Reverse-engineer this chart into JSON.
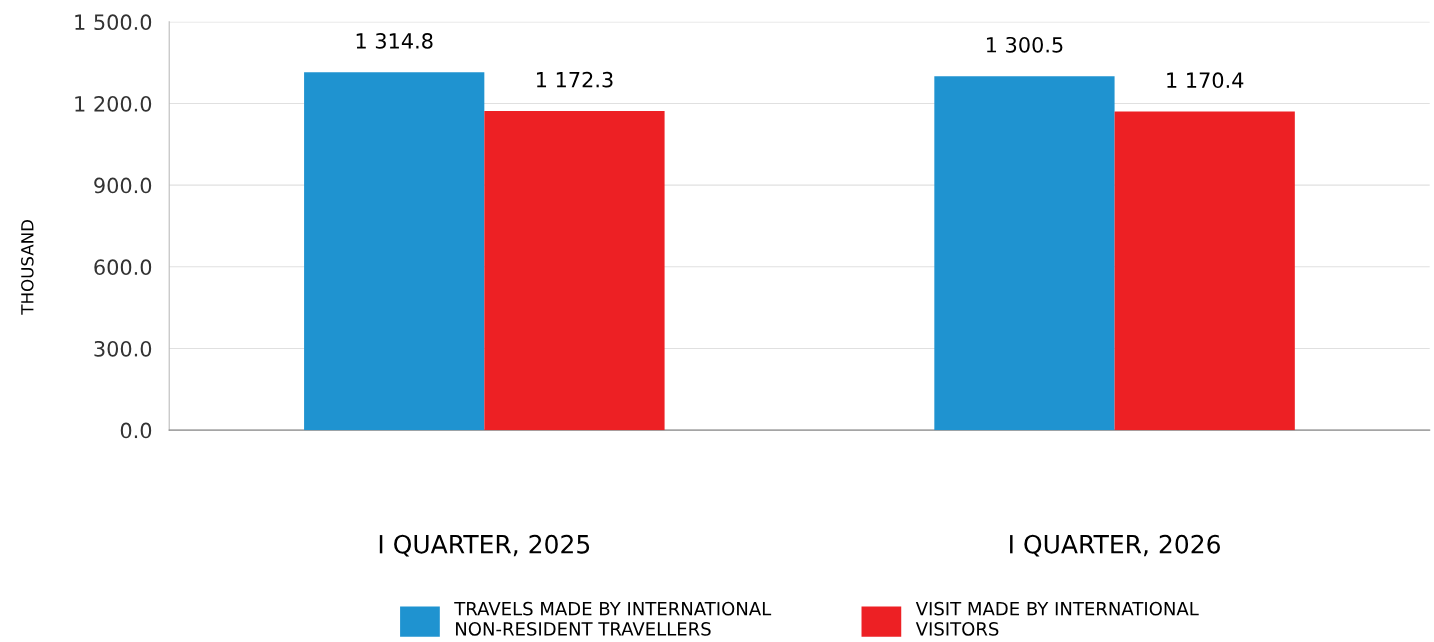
{
  "chart_data": {
    "type": "bar",
    "ylabel": "THOUSAND",
    "categories": [
      "I QUARTER, 2025",
      "I QUARTER, 2026"
    ],
    "series": [
      {
        "name": "TRAVELS MADE BY INTERNATIONAL\nNON-RESIDENT TRAVELLERS",
        "color": "#1f93d0",
        "values": [
          1314.8,
          1300.5
        ],
        "value_labels": [
          "1 314.8",
          "1 300.5"
        ]
      },
      {
        "name": "VISIT MADE BY INTERNATIONAL\nVISITORS",
        "color": "#ed2024",
        "values": [
          1172.3,
          1170.4
        ],
        "value_labels": [
          "1 172.3",
          "1 170.4"
        ]
      }
    ],
    "ylim": [
      0,
      1500
    ],
    "yticks": [
      {
        "value": 0,
        "label": "0.0"
      },
      {
        "value": 300,
        "label": "300.0"
      },
      {
        "value": 600,
        "label": "600.0"
      },
      {
        "value": 900,
        "label": "900.0"
      },
      {
        "value": 1200,
        "label": "1 200.0"
      },
      {
        "value": 1500,
        "label": "1 500.0"
      }
    ],
    "grid": "y",
    "legend": "bottom"
  }
}
